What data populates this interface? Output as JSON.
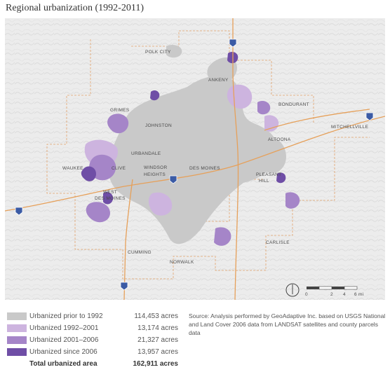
{
  "title": "Regional urbanization (1992-2011)",
  "map": {
    "cities": [
      {
        "name": "POLK CITY"
      },
      {
        "name": "ANKENY"
      },
      {
        "name": "BONDURANT"
      },
      {
        "name": "GRIMES"
      },
      {
        "name": "JOHNSTON"
      },
      {
        "name": "MITCHELLVILLE"
      },
      {
        "name": "ALTOONA"
      },
      {
        "name": "URBANDALE"
      },
      {
        "name": "WAUKEE"
      },
      {
        "name": "CLIVE"
      },
      {
        "name": "WINDSOR"
      },
      {
        "name": "HEIGHTS"
      },
      {
        "name": "DES MOINES"
      },
      {
        "name": "PLEASANT"
      },
      {
        "name": "HILL"
      },
      {
        "name": "WEST"
      },
      {
        "name": "DES MOINES"
      },
      {
        "name": "CARLISLE"
      },
      {
        "name": "CUMMING"
      },
      {
        "name": "NORWALK"
      }
    ],
    "highway_shields": [
      "35",
      "80",
      "235",
      "80",
      "35"
    ],
    "scale_bar": {
      "ticks": [
        "0",
        "2",
        "4",
        "6 mi"
      ]
    },
    "north_icon": "north-arrow-icon",
    "colors": {
      "prior_1992": "#c9c9c9",
      "1992_2001": "#cdb4df",
      "2001_2006": "#a585c8",
      "since_2006": "#6f4ea6",
      "roads": "#e6a05a",
      "boundaries": "#e1a26a"
    }
  },
  "legend": {
    "items": [
      {
        "label": "Urbanized prior to 1992",
        "value": "114,453 acres",
        "color": "#c9c9c9"
      },
      {
        "label": "Urbanized 1992–2001",
        "value": "13,174 acres",
        "color": "#cdb4df"
      },
      {
        "label": "Urbanized 2001–2006",
        "value": "21,327 acres",
        "color": "#a585c8"
      },
      {
        "label": "Urbanized since 2006",
        "value": "13,957 acres",
        "color": "#6f4ea6"
      }
    ],
    "total": {
      "label": "Total urbanized area",
      "value": "162,911 acres"
    }
  },
  "source": "Source: Analysis performed by GeoAdaptive Inc. based on USGS National and Land Cover 2006 data from LANDSAT satellites and county parcels data"
}
